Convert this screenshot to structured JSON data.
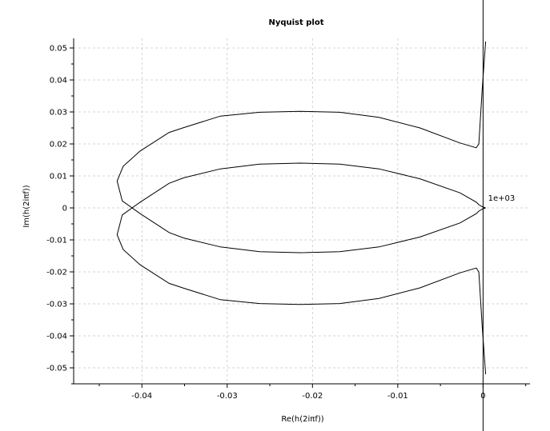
{
  "chart_data": {
    "type": "line",
    "title": "Nyquist plot",
    "xlabel": "Re(h(2iπf))",
    "ylabel": "Im(h(2iπf))",
    "xlim": [
      -0.048,
      0.0055
    ],
    "ylim": [
      -0.055,
      0.053
    ],
    "xticks": [
      -0.04,
      -0.03,
      -0.02,
      -0.01,
      0
    ],
    "xtick_labels": [
      "-0.04",
      "-0.03",
      "-0.02",
      "-0.01",
      "0"
    ],
    "yticks": [
      0.05,
      0.04,
      0.03,
      0.02,
      0.01,
      0,
      -0.01,
      -0.02,
      -0.03,
      -0.04,
      -0.05
    ],
    "ytick_labels": [
      "0.05",
      "0.04",
      "0.03",
      "0.02",
      "0.01",
      "0",
      "-0.01",
      "-0.02",
      "-0.03",
      "-0.04",
      "-0.05"
    ],
    "grid": true,
    "annotations": [
      {
        "text": "1e+03",
        "x": 0.0003,
        "y": 0.0022
      }
    ],
    "series": [
      {
        "x": [
          0.0003,
          -0.0001,
          -0.0005,
          -0.0008,
          -0.0027,
          -0.0074,
          -0.0122,
          -0.0168,
          -0.0215,
          -0.0262,
          -0.0308,
          -0.0351,
          -0.0368,
          -0.0402,
          -0.0422,
          -0.0429,
          -0.0423,
          -0.0402,
          -0.0368,
          -0.0351,
          -0.0308,
          -0.0262,
          -0.0215,
          -0.0168,
          -0.0122,
          -0.0074,
          -0.0027,
          -0.0008,
          -0.0005,
          -0.0001,
          0.0003
        ],
        "y": [
          0.052,
          0.037,
          0.02,
          0.0188,
          0.0203,
          0.025,
          0.0283,
          0.0299,
          0.0302,
          0.0299,
          0.0287,
          0.0251,
          0.0236,
          0.0178,
          0.013,
          0.0084,
          0.0022,
          -0.0018,
          -0.0077,
          -0.0094,
          -0.0122,
          -0.0137,
          -0.014,
          -0.0137,
          -0.0122,
          -0.0091,
          -0.0047,
          -0.0018,
          -0.001,
          -0.0004,
          0
        ]
      },
      {
        "x": [
          0.0003,
          -0.0001,
          -0.0005,
          -0.0008,
          -0.0027,
          -0.0074,
          -0.0122,
          -0.0168,
          -0.0215,
          -0.0262,
          -0.0308,
          -0.0351,
          -0.0368,
          -0.0402,
          -0.0422,
          -0.0429,
          -0.0423,
          -0.0402,
          -0.0368,
          -0.0351,
          -0.0308,
          -0.0262,
          -0.0215,
          -0.0168,
          -0.0122,
          -0.0074,
          -0.0027,
          -0.0008,
          -0.0005,
          -0.0001,
          0.0003
        ],
        "y": [
          -0.052,
          -0.037,
          -0.02,
          -0.0188,
          -0.0203,
          -0.025,
          -0.0283,
          -0.0299,
          -0.0302,
          -0.0299,
          -0.0287,
          -0.0251,
          -0.0236,
          -0.0178,
          -0.013,
          -0.0084,
          -0.0022,
          0.0018,
          0.0077,
          0.0094,
          0.0122,
          0.0137,
          0.014,
          0.0137,
          0.0122,
          0.0091,
          0.0047,
          0.0018,
          0.001,
          0.0004,
          0
        ]
      }
    ]
  }
}
